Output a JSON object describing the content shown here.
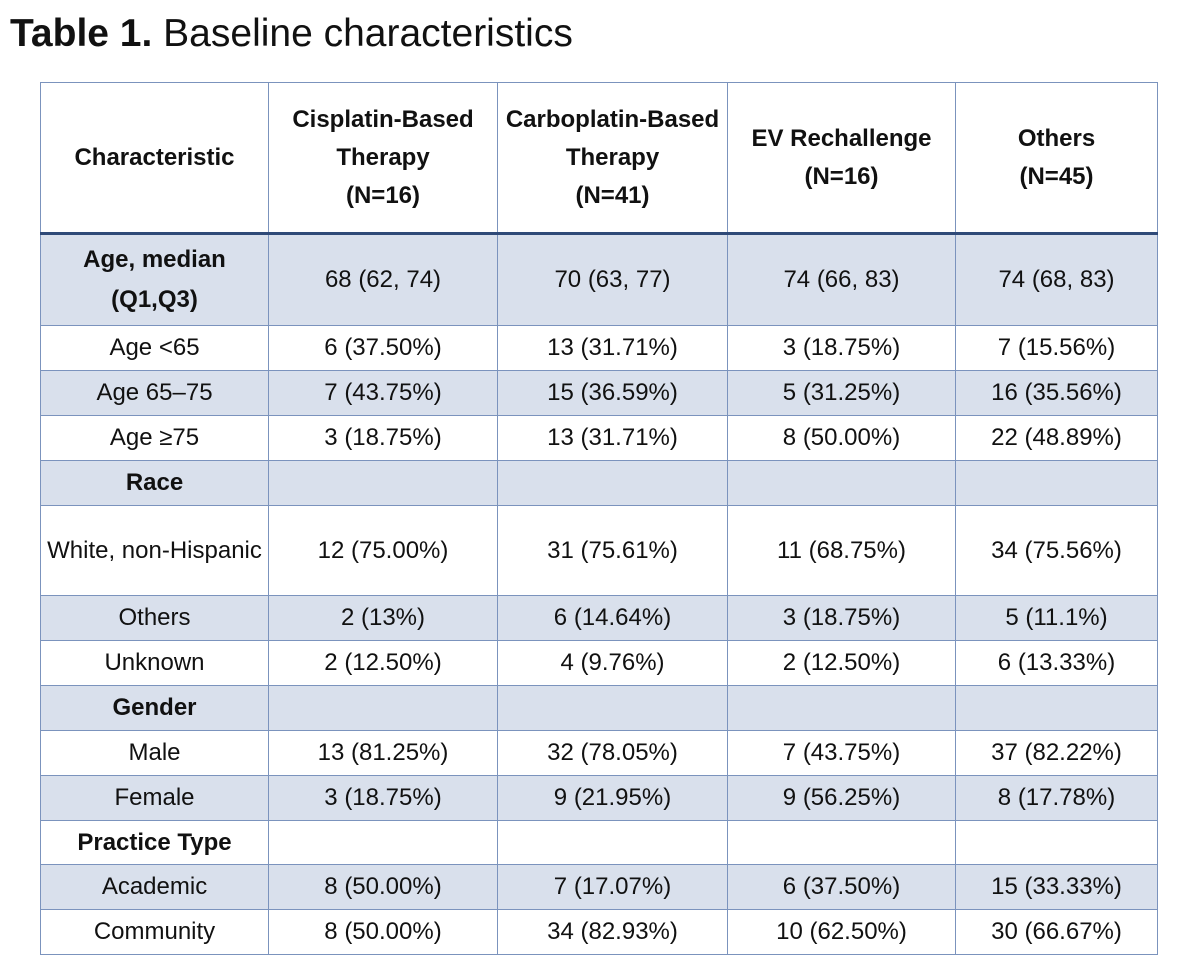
{
  "title": {
    "label": "Table 1.",
    "text": "Baseline characteristics"
  },
  "table": {
    "header": [
      {
        "name": "Characteristic"
      },
      {
        "name": "Cisplatin-Based Therapy",
        "n": "(N=16)"
      },
      {
        "name": "Carboplatin-Based Therapy",
        "n": "(N=41)"
      },
      {
        "name": "EV Rechallenge",
        "n": "(N=16)"
      },
      {
        "name": "Others",
        "n": "(N=45)"
      }
    ],
    "rows": [
      {
        "label": "Age, median (Q1,Q3)",
        "section": true,
        "cells": [
          "68 (62, 74)",
          "70 (63, 77)",
          "74 (66, 83)",
          "74 (68, 83)"
        ]
      },
      {
        "label": "Age <65",
        "cells": [
          "6 (37.50%)",
          "13 (31.71%)",
          "3 (18.75%)",
          "7 (15.56%)"
        ]
      },
      {
        "label": "Age 65–75",
        "cells": [
          "7 (43.75%)",
          "15 (36.59%)",
          "5 (31.25%)",
          "16 (35.56%)"
        ]
      },
      {
        "label": "Age ≥75",
        "cells": [
          "3 (18.75%)",
          "13 (31.71%)",
          "8 (50.00%)",
          "22 (48.89%)"
        ]
      },
      {
        "label": "Race",
        "section": true,
        "cells": []
      },
      {
        "label": "White, non-Hispanic",
        "cells": [
          "12 (75.00%)",
          "31 (75.61%)",
          "11 (68.75%)",
          "34 (75.56%)"
        ]
      },
      {
        "label": "Others",
        "cells": [
          "2 (13%)",
          "6 (14.64%)",
          "3 (18.75%)",
          "5 (11.1%)"
        ]
      },
      {
        "label": "Unknown",
        "cells": [
          "2 (12.50%)",
          "4 (9.76%)",
          "2 (12.50%)",
          "6 (13.33%)"
        ]
      },
      {
        "label": "Gender",
        "section": true,
        "cells": []
      },
      {
        "label": "Male",
        "cells": [
          "13 (81.25%)",
          "32 (78.05%)",
          "7 (43.75%)",
          "37 (82.22%)"
        ]
      },
      {
        "label": "Female",
        "cells": [
          "3 (18.75%)",
          "9 (21.95%)",
          "9 (56.25%)",
          "8 (17.78%)"
        ]
      },
      {
        "label": "Practice Type",
        "section": true,
        "cells": []
      },
      {
        "label": "Academic",
        "cells": [
          "8 (50.00%)",
          "7 (17.07%)",
          "6 (37.50%)",
          "15 (33.33%)"
        ]
      },
      {
        "label": "Community",
        "cells": [
          "8 (50.00%)",
          "34 (82.93%)",
          "10 (62.50%)",
          "30 (66.67%)"
        ]
      }
    ]
  }
}
